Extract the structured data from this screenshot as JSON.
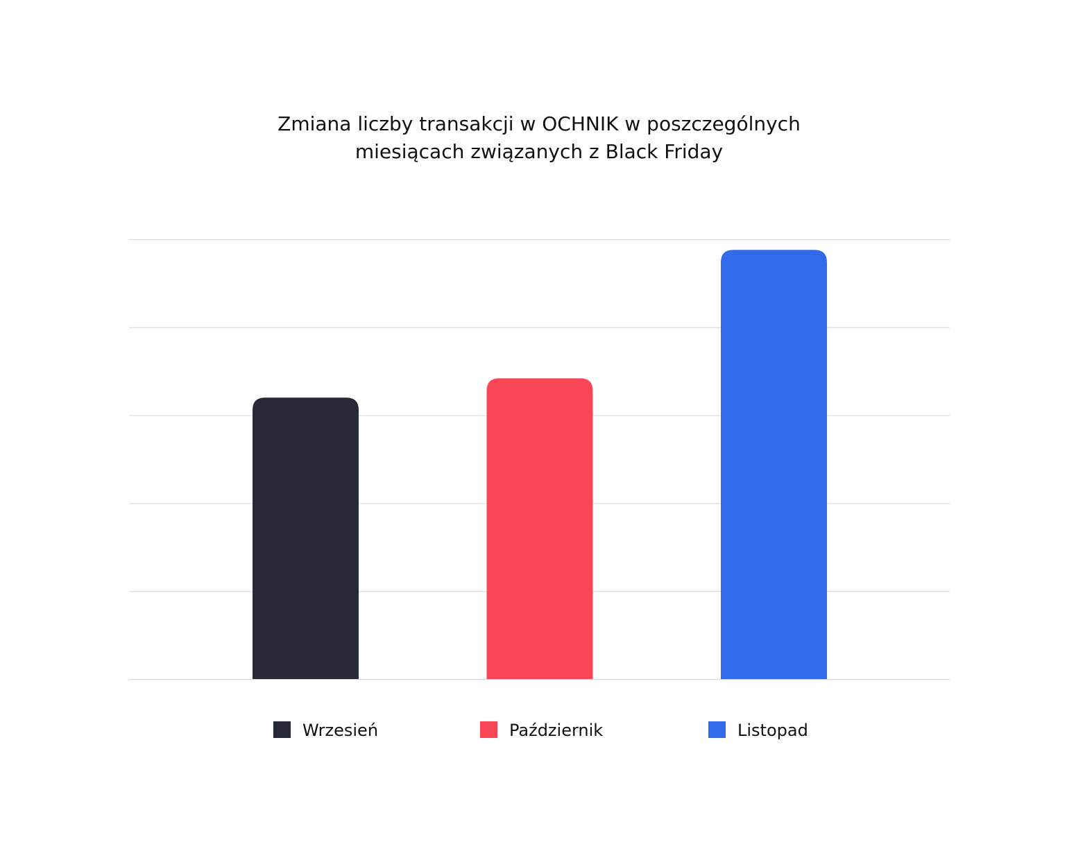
{
  "chart_data": {
    "type": "bar",
    "title": "Zmiana liczby transakcji w OCHNIK w poszczególnych miesiącach związanych z Black Friday",
    "title_lines": [
      "Zmiana liczby transakcji w OCHNIK w poszczególnych",
      "miesiącach związanych z Black Friday"
    ],
    "categories": [
      "Wrzesień",
      "Październik",
      "Listopad"
    ],
    "values": [
      3.2,
      3.42,
      4.88
    ],
    "colors": [
      "#272939",
      "#f94656",
      "#316bea"
    ],
    "xlabel": "",
    "ylabel": "",
    "ylim": [
      0,
      5
    ],
    "grid": true,
    "gridlines": 5,
    "y_tick_labels_shown": false,
    "legend": {
      "placement": "bottom",
      "entries": [
        "Wrzesień",
        "Październik",
        "Listopad"
      ]
    }
  }
}
